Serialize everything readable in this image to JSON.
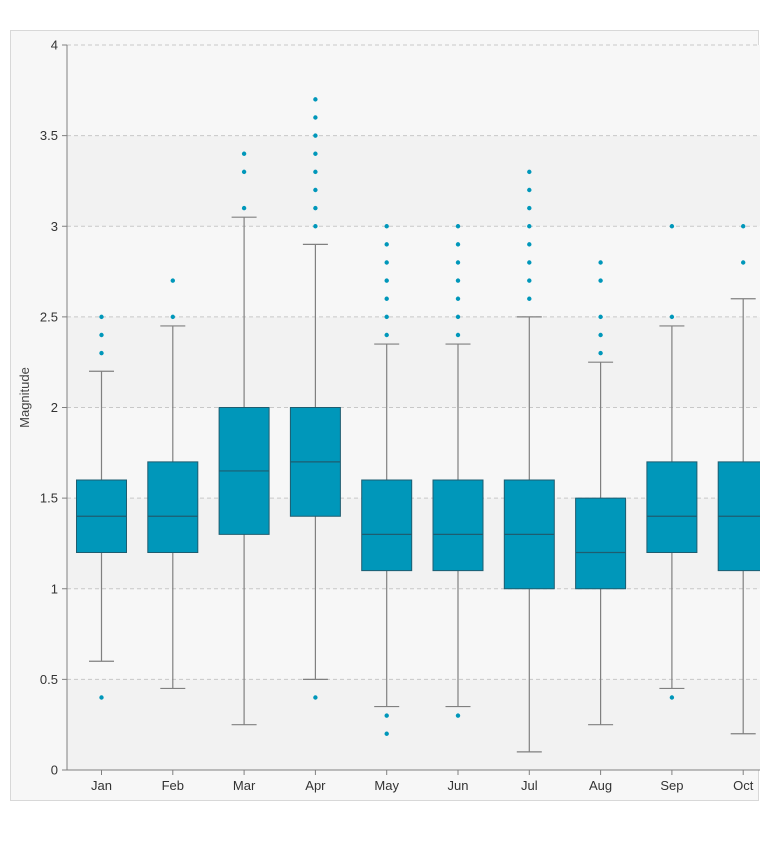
{
  "chart_data": {
    "type": "box",
    "title": "",
    "xlabel": "",
    "ylabel": "Magnitude",
    "ylim": [
      0,
      4
    ],
    "yticks": [
      "0",
      "0.5",
      "1",
      "1.5",
      "2",
      "2.5",
      "3",
      "3.5",
      "4"
    ],
    "ytick_values": [
      0,
      0.5,
      1,
      1.5,
      2,
      2.5,
      3,
      3.5,
      4
    ],
    "grid": true,
    "legend": "none",
    "colors": {
      "box": "#0097BA",
      "box_stroke": "#1e5d70",
      "whisker": "#808080",
      "outlier": "#0097BA",
      "grid": "#c8c8c8",
      "band": "#f2f2f2"
    },
    "categories": [
      "Jan",
      "Feb",
      "Mar",
      "Apr",
      "May",
      "Jun",
      "Jul",
      "Aug",
      "Sep",
      "Oct"
    ],
    "boxes": [
      {
        "category": "Jan",
        "whisker_low": 0.6,
        "q1": 1.2,
        "median": 1.4,
        "q3": 1.6,
        "whisker_high": 2.2,
        "outliers": [
          0.4,
          2.3,
          2.4,
          2.5
        ]
      },
      {
        "category": "Feb",
        "whisker_low": 0.45,
        "q1": 1.2,
        "median": 1.4,
        "q3": 1.7,
        "whisker_high": 2.45,
        "outliers": [
          2.5,
          2.7
        ]
      },
      {
        "category": "Mar",
        "whisker_low": 0.25,
        "q1": 1.3,
        "median": 1.65,
        "q3": 2.0,
        "whisker_high": 3.05,
        "outliers": [
          3.1,
          3.3,
          3.4
        ]
      },
      {
        "category": "Apr",
        "whisker_low": 0.5,
        "q1": 1.4,
        "median": 1.7,
        "q3": 2.0,
        "whisker_high": 2.9,
        "outliers": [
          0.4,
          3.0,
          3.1,
          3.2,
          3.3,
          3.4,
          3.5,
          3.6,
          3.7
        ]
      },
      {
        "category": "May",
        "whisker_low": 0.35,
        "q1": 1.1,
        "median": 1.3,
        "q3": 1.6,
        "whisker_high": 2.35,
        "outliers": [
          0.2,
          0.3,
          2.4,
          2.5,
          2.6,
          2.7,
          2.8,
          2.9,
          3.0
        ]
      },
      {
        "category": "Jun",
        "whisker_low": 0.35,
        "q1": 1.1,
        "median": 1.3,
        "q3": 1.6,
        "whisker_high": 2.35,
        "outliers": [
          0.3,
          2.4,
          2.5,
          2.6,
          2.7,
          2.8,
          2.9,
          3.0
        ]
      },
      {
        "category": "Jul",
        "whisker_low": 0.1,
        "q1": 1.0,
        "median": 1.3,
        "q3": 1.6,
        "whisker_high": 2.5,
        "outliers": [
          2.6,
          2.7,
          2.8,
          2.9,
          3.0,
          3.1,
          3.2,
          3.3
        ]
      },
      {
        "category": "Aug",
        "whisker_low": 0.25,
        "q1": 1.0,
        "median": 1.2,
        "q3": 1.5,
        "whisker_high": 2.25,
        "outliers": [
          2.3,
          2.4,
          2.5,
          2.7,
          2.8
        ]
      },
      {
        "category": "Sep",
        "whisker_low": 0.45,
        "q1": 1.2,
        "median": 1.4,
        "q3": 1.7,
        "whisker_high": 2.45,
        "outliers": [
          0.4,
          2.5,
          3.0
        ]
      },
      {
        "category": "Oct",
        "whisker_low": 0.2,
        "q1": 1.1,
        "median": 1.4,
        "q3": 1.7,
        "whisker_high": 2.6,
        "outliers": [
          2.8,
          3.0
        ]
      }
    ]
  }
}
